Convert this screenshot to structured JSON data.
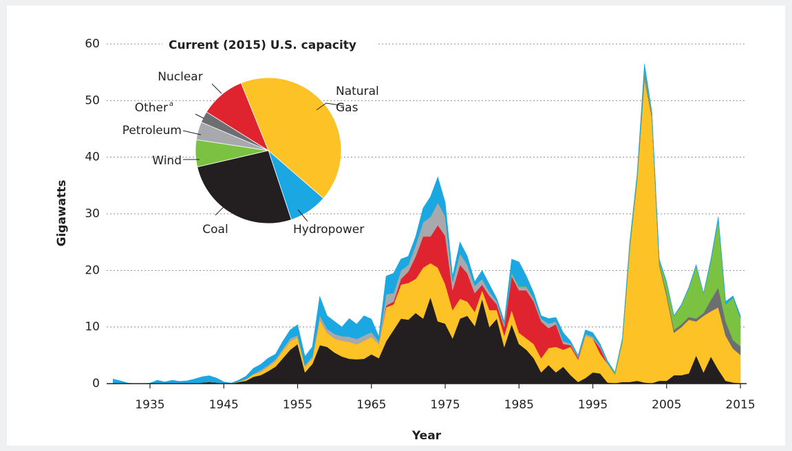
{
  "chart_data": [
    {
      "type": "stacked-area",
      "xlabel": "Year",
      "ylabel": "Gigawatts",
      "x": [
        1930,
        1931,
        1932,
        1933,
        1934,
        1935,
        1936,
        1937,
        1938,
        1939,
        1940,
        1941,
        1942,
        1943,
        1944,
        1945,
        1946,
        1947,
        1948,
        1949,
        1950,
        1951,
        1952,
        1953,
        1954,
        1955,
        1956,
        1957,
        1958,
        1959,
        1960,
        1961,
        1962,
        1963,
        1964,
        1965,
        1966,
        1967,
        1968,
        1969,
        1970,
        1971,
        1972,
        1973,
        1974,
        1975,
        1976,
        1977,
        1978,
        1979,
        1980,
        1981,
        1982,
        1983,
        1984,
        1985,
        1986,
        1987,
        1988,
        1989,
        1990,
        1991,
        1992,
        1993,
        1994,
        1995,
        1996,
        1997,
        1998,
        1999,
        2000,
        2001,
        2002,
        2003,
        2004,
        2005,
        2006,
        2007,
        2008,
        2009,
        2010,
        2011,
        2012,
        2013,
        2014,
        2015
      ],
      "series": [
        {
          "color": "#231f20",
          "values": [
            0,
            0,
            0,
            0,
            0,
            0,
            0,
            0,
            0,
            0,
            0,
            0,
            0.2,
            0.3,
            0.2,
            0,
            0,
            0.3,
            0.5,
            1.2,
            1.5,
            2.2,
            3,
            4.5,
            6,
            7,
            2,
            3.5,
            6.8,
            6.5,
            5.5,
            4.8,
            4.4,
            4.3,
            4.4,
            5.2,
            4.5,
            7.5,
            9.5,
            11.5,
            11.3,
            12.5,
            11.5,
            15.3,
            11,
            10.6,
            8,
            11.5,
            12,
            10.2,
            15,
            10,
            11.5,
            6.5,
            10.5,
            7,
            6,
            4.5,
            2,
            3.3,
            2,
            3,
            1.5,
            0.3,
            1,
            2,
            1.8,
            0.2,
            0.1,
            0.3,
            0.3,
            0.5,
            0.2,
            0.1,
            0.5,
            0.5,
            1.5,
            1.5,
            1.8,
            5,
            2,
            4.8,
            2.5,
            0.5,
            0.2,
            0.1
          ]
        },
        {
          "color": "#fdc326",
          "values": [
            0,
            0,
            0,
            0,
            0,
            0,
            0,
            0,
            0,
            0,
            0,
            0,
            0,
            0,
            0,
            0,
            0,
            0.1,
            0.3,
            0.5,
            0.6,
            0.8,
            1,
            1.3,
            1.5,
            1.2,
            1,
            1,
            4.5,
            2.5,
            2.5,
            2.8,
            3,
            2.7,
            3.2,
            3.1,
            2.5,
            6,
            4.5,
            6,
            6.5,
            6,
            9,
            6,
            9.5,
            7,
            5,
            3.5,
            2.5,
            2.5,
            1.5,
            3,
            1.5,
            2,
            2.5,
            2,
            2,
            2.5,
            2.5,
            3,
            4.5,
            3,
            5,
            4,
            7.5,
            6,
            3.5,
            3.3,
            1.5,
            7,
            23.5,
            35.5,
            53.5,
            47,
            20.5,
            15,
            7.5,
            8.5,
            9.5,
            6,
            10,
            8,
            11,
            8,
            6,
            5
          ]
        },
        {
          "color": "#e0242f",
          "values": [
            0,
            0,
            0,
            0,
            0,
            0,
            0,
            0,
            0,
            0,
            0,
            0,
            0,
            0,
            0,
            0,
            0,
            0,
            0,
            0,
            0,
            0,
            0,
            0,
            0,
            0,
            0,
            0,
            0,
            0,
            0,
            0,
            0,
            0,
            0,
            0,
            0,
            0.3,
            0.5,
            1,
            2,
            4,
            5.5,
            4.7,
            7.5,
            8.5,
            3.5,
            6,
            5,
            3.3,
            1,
            2.5,
            1,
            1.5,
            6,
            7.5,
            8.5,
            7.5,
            6.5,
            3.5,
            4,
            1,
            0.3,
            0.3,
            0,
            0,
            1,
            0,
            0,
            0,
            0,
            0,
            0,
            0,
            0,
            0,
            0,
            0,
            0,
            0,
            0,
            0,
            0,
            0,
            0,
            0
          ]
        },
        {
          "color": "#a7a9ac",
          "values": [
            0,
            0,
            0,
            0,
            0,
            0,
            0,
            0,
            0,
            0,
            0,
            0,
            0,
            0,
            0,
            0,
            0,
            0,
            0,
            0,
            0.3,
            0.3,
            0.3,
            0.4,
            0.5,
            0.4,
            0.3,
            0.3,
            0.8,
            0.7,
            0.8,
            0.8,
            0.9,
            0.9,
            0.9,
            0.8,
            0.5,
            2,
            1.5,
            1.5,
            1.2,
            2,
            2.5,
            3.5,
            4,
            3.5,
            1.5,
            2,
            1.5,
            1.3,
            1,
            0.7,
            0.5,
            0.5,
            0.5,
            0.5,
            0.5,
            0.5,
            0.5,
            0.8,
            0.5,
            0.5,
            0.3,
            0.2,
            0.3,
            0.3,
            0.3,
            0.2,
            0,
            0,
            0,
            0,
            0.5,
            0,
            0,
            0,
            0,
            0,
            0,
            0,
            0,
            0,
            0,
            0,
            0,
            0
          ]
        },
        {
          "color": "#6d6e71",
          "values": [
            0,
            0,
            0,
            0,
            0,
            0,
            0,
            0,
            0,
            0,
            0,
            0,
            0,
            0,
            0,
            0,
            0,
            0,
            0,
            0,
            0,
            0,
            0,
            0,
            0,
            0,
            0,
            0,
            0,
            0,
            0,
            0,
            0,
            0,
            0,
            0,
            0,
            0,
            0,
            0,
            0,
            0,
            0,
            0,
            0,
            0,
            0,
            0,
            0,
            0,
            0,
            0,
            0,
            0,
            0,
            0,
            0,
            0,
            0,
            0,
            0,
            0,
            0,
            0,
            0,
            0,
            0,
            0,
            0,
            0.1,
            0.2,
            0.3,
            0.5,
            0.3,
            0.3,
            0.5,
            0.5,
            0.5,
            0.5,
            0.5,
            0.5,
            2,
            3.5,
            2.5,
            1.5,
            1.5
          ]
        },
        {
          "color": "#7cc242",
          "values": [
            0,
            0,
            0,
            0,
            0,
            0,
            0,
            0,
            0,
            0,
            0,
            0,
            0,
            0,
            0,
            0,
            0,
            0,
            0,
            0,
            0,
            0,
            0,
            0,
            0,
            0,
            0,
            0,
            0,
            0,
            0,
            0,
            0,
            0,
            0,
            0,
            0,
            0,
            0,
            0,
            0,
            0,
            0,
            0,
            0,
            0,
            0,
            0,
            0,
            0,
            0,
            0,
            0,
            0,
            0.1,
            0.2,
            0.2,
            0.1,
            0,
            0,
            0,
            0,
            0,
            0,
            0,
            0,
            0,
            0,
            0.3,
            0.5,
            0.8,
            0.5,
            0.5,
            0.5,
            0.4,
            1.8,
            2.4,
            3.4,
            5,
            9.3,
            3.4,
            6.8,
            12,
            3,
            7.5,
            5
          ]
        },
        {
          "color": "#1ba7e1",
          "values": [
            0.8,
            0.5,
            0.1,
            0,
            0,
            0.1,
            0.6,
            0.3,
            0.6,
            0.4,
            0.5,
            0.8,
            1,
            1.1,
            0.8,
            0.3,
            0.1,
            0.2,
            0.5,
            1,
            1,
            1.2,
            0.9,
            1.3,
            1.5,
            1.8,
            1.5,
            1.7,
            3.3,
            2.3,
            2.2,
            1.6,
            3.2,
            2.6,
            3.5,
            2.3,
            0.8,
            3.2,
            3.5,
            2,
            1.5,
            1.5,
            2.5,
            3.5,
            4.5,
            2.4,
            1,
            2,
            1.5,
            0.7,
            1.5,
            1.3,
            0.5,
            0.5,
            2.4,
            4.3,
            1.8,
            0.9,
            0.5,
            0.9,
            0.7,
            1.5,
            0.4,
            0.2,
            0.7,
            0.7,
            0.4,
            0.3,
            0.1,
            0.1,
            0.2,
            0.2,
            1.3,
            0.1,
            0.3,
            0.2,
            0.1,
            0.1,
            0.2,
            0.2,
            0.1,
            0.4,
            0.5,
            0.5,
            0.3,
            0.4
          ]
        }
      ],
      "xlim": [
        1929.5,
        2015.5
      ],
      "xticks": [
        1935,
        1945,
        1955,
        1965,
        1975,
        1985,
        1995,
        2005,
        2015
      ],
      "ylim": [
        0,
        60
      ],
      "yticks": [
        0,
        10,
        20,
        30,
        40,
        50,
        60
      ],
      "grid": true
    },
    {
      "type": "pie",
      "title": "Current (2015) U.S. capacity",
      "categories": [
        "Natural Gas",
        "Hydropower",
        "Coal",
        "Wind",
        "Petroleum",
        "Other",
        "Nuclear"
      ],
      "footnote_marks": {
        "5": "a"
      },
      "values": [
        42.5,
        8.5,
        26.5,
        6,
        4,
        2.5,
        10
      ],
      "colors": [
        "#fdc326",
        "#1ba7e1",
        "#231f20",
        "#7cc242",
        "#a7a9ac",
        "#6d6e71",
        "#e0242f"
      ],
      "start_angle": -22
    }
  ]
}
